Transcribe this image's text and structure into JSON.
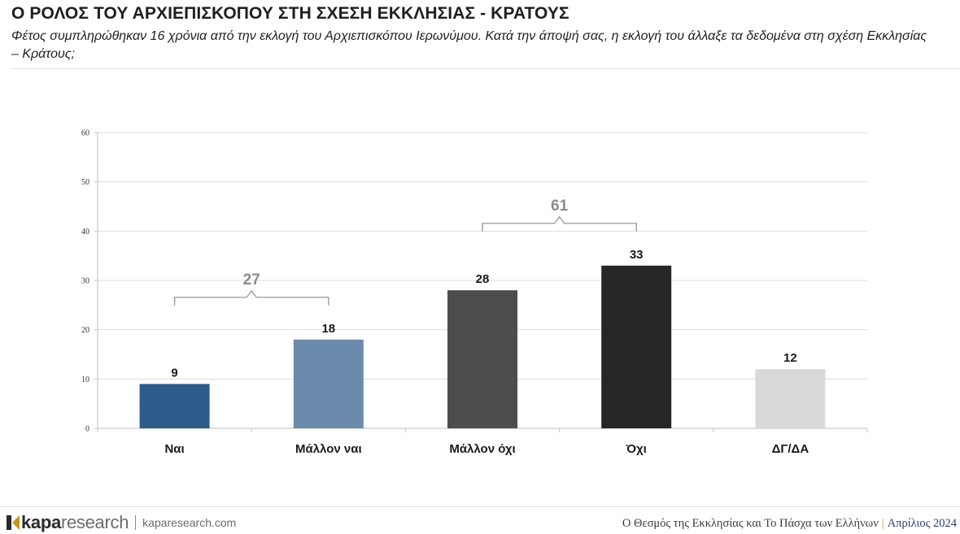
{
  "header": {
    "title": "Ο ΡΟΛΟΣ ΤΟΥ ΑΡΧΙΕΠΙΣΚΟΠΟΥ ΣΤΗ ΣΧΕΣΗ ΕΚΚΛΗΣΙΑΣ - ΚΡΑΤΟΥΣ",
    "subtitle_line1": "Φέτος συμπληρώθηκαν 16 χρόνια από την εκλογή του Αρχιεπισκόπου Ιερωνύμου. Κατά την άποψή σας, η εκλογή του άλλαξε τα δεδομένα στη σχέση Εκκλησίας",
    "subtitle_line2": "– Κράτους;"
  },
  "chart_data": {
    "type": "bar",
    "categories": [
      "Ναι",
      "Μάλλον ναι",
      "Μάλλον όχι",
      "Όχι",
      "ΔΓ/ΔΑ"
    ],
    "values": [
      9,
      18,
      28,
      33,
      12
    ],
    "colors": [
      "#2e5b8a",
      "#6b8bad",
      "#4d4d4d",
      "#262626",
      "#d9d9d9"
    ],
    "ylim": [
      0,
      60
    ],
    "yticks": [
      "0",
      "10",
      "20",
      "30",
      "40",
      "50",
      "60"
    ],
    "grid": true,
    "groups": [
      {
        "label": "27",
        "from": 0,
        "to": 1
      },
      {
        "label": "61",
        "from": 2,
        "to": 3
      }
    ]
  },
  "footer": {
    "logo_bold": "kapa",
    "logo_light": "research",
    "site": "kaparesearch.com",
    "report": "Ο Θεσμός της Εκκλησίας και Το Πάσχα των Ελλήνων",
    "separator": "|",
    "date": "Απρίλιος 2024",
    "brand_color": "#c8961e"
  }
}
